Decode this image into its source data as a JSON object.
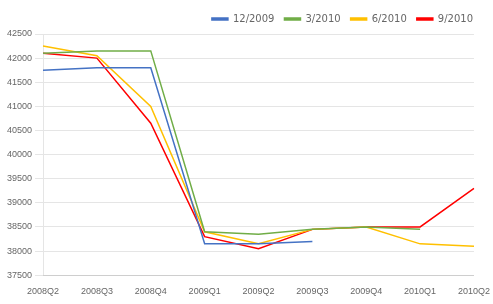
{
  "chart_data": {
    "type": "line",
    "categories": [
      "2008Q2",
      "2008Q3",
      "2008Q4",
      "2009Q1",
      "2009Q2",
      "2009Q3",
      "2009Q4",
      "2010Q1",
      "2010Q2"
    ],
    "series": [
      {
        "name": "12/2009",
        "color": "#4472C4",
        "values": [
          41750,
          41800,
          41800,
          38150,
          38150,
          38200,
          null,
          null,
          null
        ]
      },
      {
        "name": "3/2010",
        "color": "#70AD47",
        "values": [
          42100,
          42150,
          42150,
          38400,
          38350,
          38450,
          38500,
          38450,
          null
        ]
      },
      {
        "name": "6/2010",
        "color": "#FFC000",
        "values": [
          42250,
          42050,
          41000,
          38400,
          38150,
          38450,
          38500,
          38150,
          38100
        ]
      },
      {
        "name": "9/2010",
        "color": "#FF0000",
        "values": [
          42100,
          42000,
          40650,
          38300,
          38050,
          38450,
          38500,
          38500,
          39300
        ]
      }
    ],
    "ylim": [
      37500,
      42500
    ],
    "yticks": [
      37500,
      38000,
      38500,
      39000,
      39500,
      40000,
      40500,
      41000,
      41500,
      42000,
      42500
    ],
    "grid": "y",
    "legend": "upper right",
    "line_style": "solid"
  }
}
